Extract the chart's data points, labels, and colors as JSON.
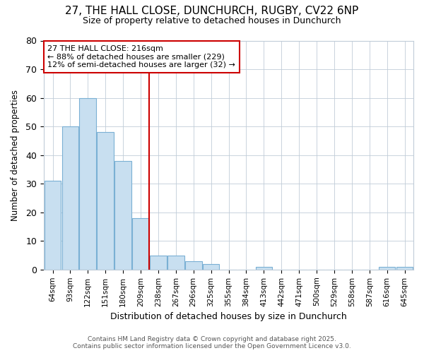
{
  "title_line1": "27, THE HALL CLOSE, DUNCHURCH, RUGBY, CV22 6NP",
  "title_line2": "Size of property relative to detached houses in Dunchurch",
  "xlabel": "Distribution of detached houses by size in Dunchurch",
  "ylabel": "Number of detached properties",
  "categories": [
    "64sqm",
    "93sqm",
    "122sqm",
    "151sqm",
    "180sqm",
    "209sqm",
    "238sqm",
    "267sqm",
    "296sqm",
    "325sqm",
    "355sqm",
    "384sqm",
    "413sqm",
    "442sqm",
    "471sqm",
    "500sqm",
    "529sqm",
    "558sqm",
    "587sqm",
    "616sqm",
    "645sqm"
  ],
  "values": [
    31,
    50,
    60,
    48,
    38,
    18,
    5,
    5,
    3,
    2,
    0,
    0,
    1,
    0,
    0,
    0,
    0,
    0,
    0,
    1,
    1
  ],
  "bar_color": "#c8dff0",
  "bar_edge_color": "#7ab0d4",
  "vline_x": 5.5,
  "vline_color": "#cc0000",
  "annotation_text": "27 THE HALL CLOSE: 216sqm\n← 88% of detached houses are smaller (229)\n12% of semi-detached houses are larger (32) →",
  "annotation_box_facecolor": "#ffffff",
  "annotation_box_edgecolor": "#cc0000",
  "ylim": [
    0,
    80
  ],
  "yticks": [
    0,
    10,
    20,
    30,
    40,
    50,
    60,
    70,
    80
  ],
  "background_color": "#ffffff",
  "grid_color": "#c0ccd8",
  "footer_line1": "Contains HM Land Registry data © Crown copyright and database right 2025.",
  "footer_line2": "Contains public sector information licensed under the Open Government Licence v3.0."
}
